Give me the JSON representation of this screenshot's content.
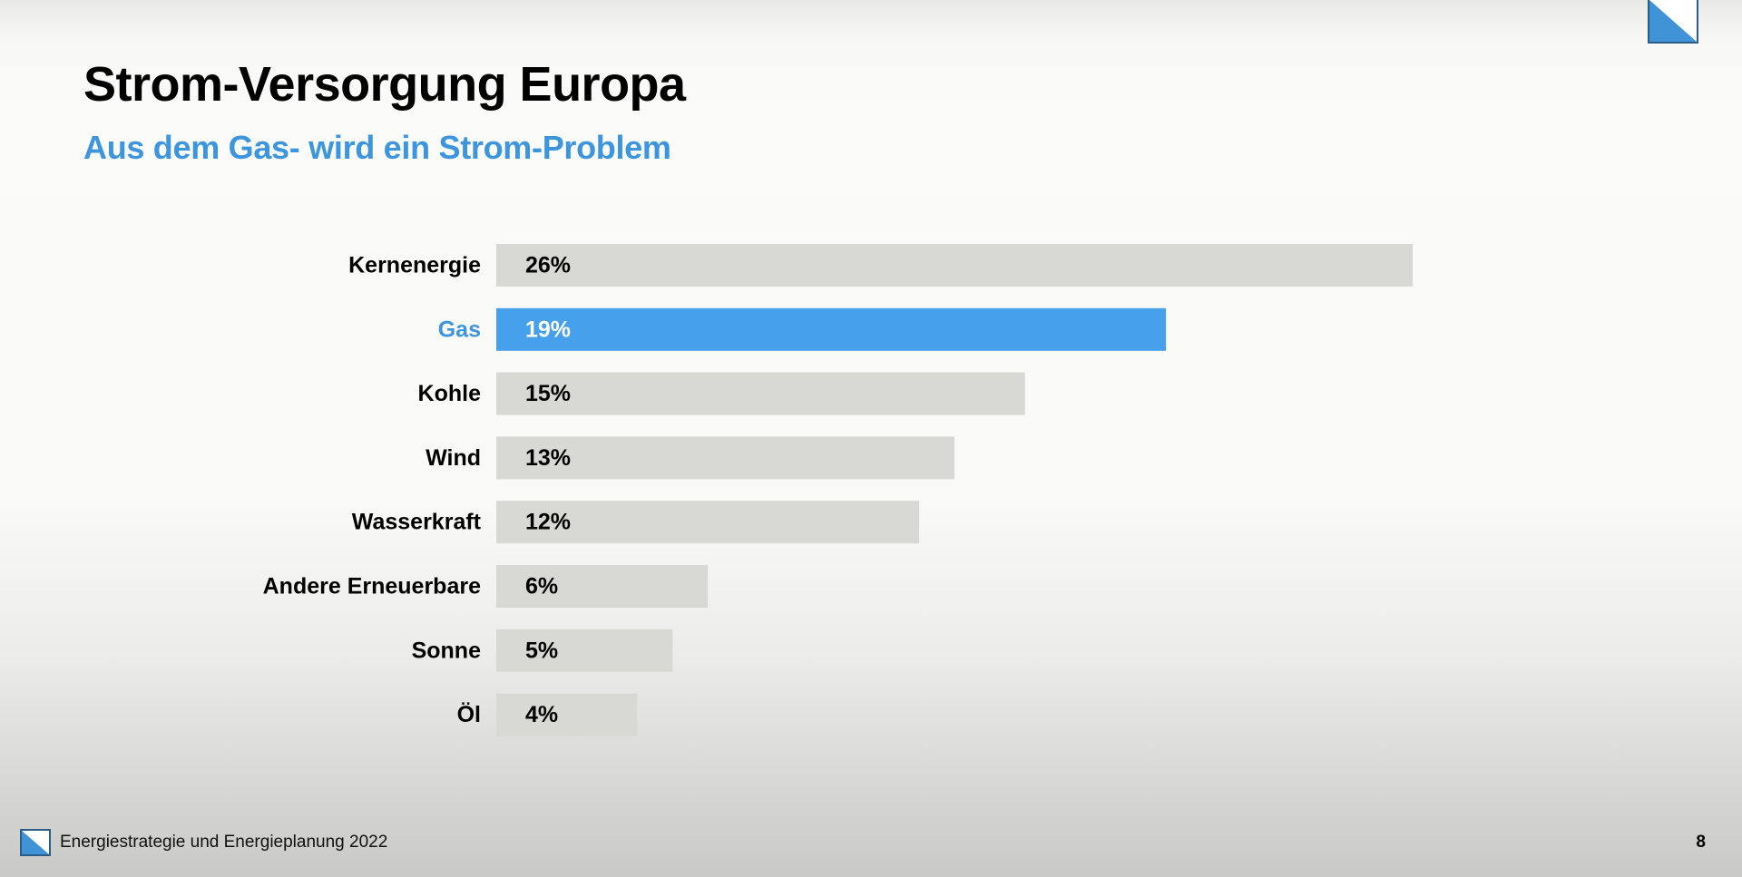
{
  "slide": {
    "title": "Strom-Versorgung Europa",
    "subtitle": "Aus dem Gas- wird ein Strom-Problem"
  },
  "footer": {
    "text": "Energiestrategie und Energieplanung 2022",
    "page_number": "8"
  },
  "colors": {
    "highlight": "#46a0ec",
    "highlight_label": "#3d95df",
    "bar_default": "#d8d8d5",
    "logo_blue": "#3f93d6"
  },
  "icons": {
    "corner_logo": "zurich-flag-logo-icon",
    "footer_logo": "zurich-flag-logo-icon"
  },
  "chart_data": {
    "type": "bar",
    "orientation": "horizontal",
    "title": "",
    "xlabel": "",
    "ylabel": "",
    "grid": false,
    "categories": [
      "Kernenergie",
      "Gas",
      "Kohle",
      "Wind",
      "Wasserkraft",
      "Andere Erneuerbare",
      "Sonne",
      "Öl"
    ],
    "values": [
      26,
      19,
      15,
      13,
      12,
      6,
      5,
      4
    ],
    "value_labels": [
      "26%",
      "19%",
      "15%",
      "13%",
      "12%",
      "6%",
      "5%",
      "4%"
    ],
    "highlighted_category": "Gas",
    "xlim": [
      0,
      26
    ]
  }
}
